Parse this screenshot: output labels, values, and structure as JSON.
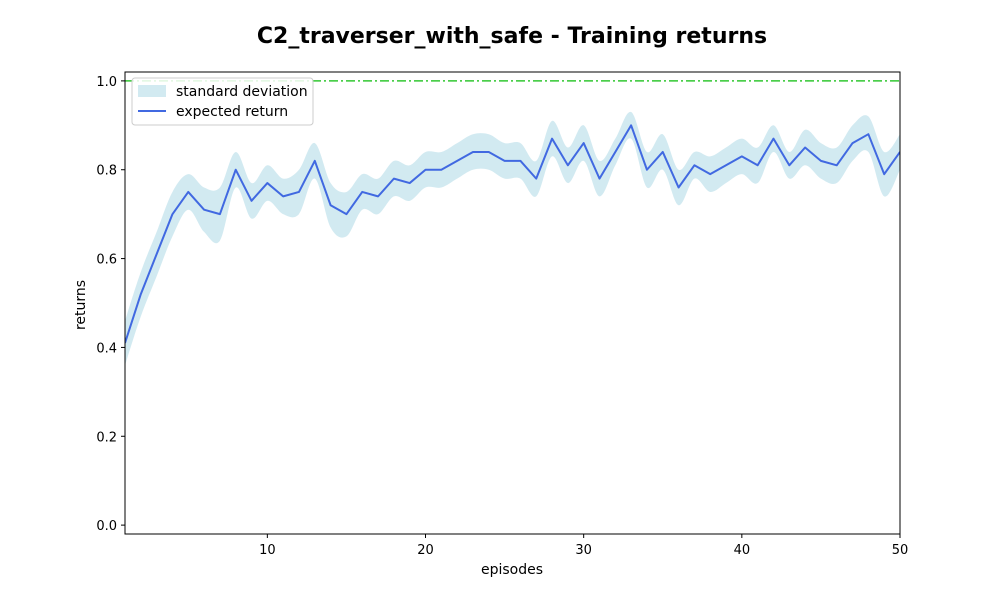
{
  "chart_data": {
    "type": "line",
    "title": "C2_traverser_with_safe - Training returns",
    "xlabel": "episodes",
    "ylabel": "returns",
    "xlim": [
      1,
      50
    ],
    "ylim": [
      -0.02,
      1.02
    ],
    "xticks": [
      10,
      20,
      30,
      40,
      50
    ],
    "yticks": [
      0.0,
      0.2,
      0.4,
      0.6,
      0.8,
      1.0
    ],
    "grid": false,
    "legend_position": "top-left",
    "reference_line": {
      "y": 1.0,
      "color": "#32c832",
      "style": "dash-dot"
    },
    "x": [
      1,
      2,
      3,
      4,
      5,
      6,
      7,
      8,
      9,
      10,
      11,
      12,
      13,
      14,
      15,
      16,
      17,
      18,
      19,
      20,
      21,
      22,
      23,
      24,
      25,
      26,
      27,
      28,
      29,
      30,
      31,
      32,
      33,
      34,
      35,
      36,
      37,
      38,
      39,
      40,
      41,
      42,
      43,
      44,
      45,
      46,
      47,
      48,
      49,
      50
    ],
    "series": [
      {
        "name": "expected return",
        "color": "#4169e1",
        "values": [
          0.41,
          0.52,
          0.61,
          0.7,
          0.75,
          0.71,
          0.7,
          0.8,
          0.73,
          0.77,
          0.74,
          0.75,
          0.82,
          0.72,
          0.7,
          0.75,
          0.74,
          0.78,
          0.77,
          0.8,
          0.8,
          0.82,
          0.84,
          0.84,
          0.82,
          0.82,
          0.78,
          0.87,
          0.81,
          0.86,
          0.78,
          0.84,
          0.9,
          0.8,
          0.84,
          0.76,
          0.81,
          0.79,
          0.81,
          0.83,
          0.81,
          0.87,
          0.81,
          0.85,
          0.82,
          0.81,
          0.86,
          0.88,
          0.79,
          0.84
        ]
      }
    ],
    "band": {
      "name": "standard deviation",
      "color": "#add8e6",
      "std": [
        0.05,
        0.05,
        0.05,
        0.05,
        0.04,
        0.05,
        0.06,
        0.04,
        0.04,
        0.04,
        0.04,
        0.05,
        0.04,
        0.05,
        0.05,
        0.04,
        0.04,
        0.04,
        0.04,
        0.04,
        0.04,
        0.04,
        0.04,
        0.04,
        0.04,
        0.04,
        0.04,
        0.04,
        0.04,
        0.04,
        0.04,
        0.03,
        0.03,
        0.04,
        0.04,
        0.04,
        0.03,
        0.04,
        0.04,
        0.04,
        0.04,
        0.03,
        0.03,
        0.04,
        0.04,
        0.04,
        0.04,
        0.04,
        0.05,
        0.04
      ]
    },
    "legend": [
      "standard deviation",
      "expected return"
    ]
  }
}
